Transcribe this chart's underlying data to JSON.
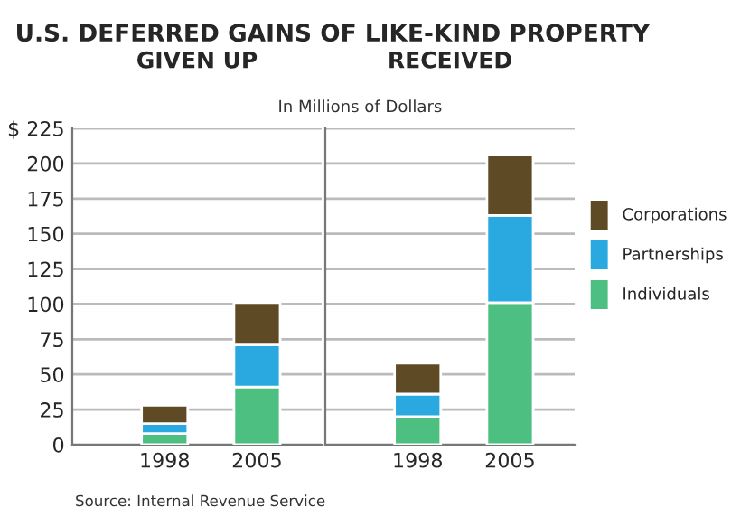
{
  "chart_data": [
    {
      "type": "bar",
      "stacked": true,
      "title": "U.S. DEFERRED GAINS OF LIKE-KIND PROPERTY",
      "subtitle": "GIVEN UP",
      "annotations": [
        "In Millions of Dollars",
        "Source: Internal Revenue Service"
      ],
      "categories": [
        "1998",
        "2005"
      ],
      "series": [
        {
          "color": "#4dbf80",
          "values": [
            8,
            41
          ]
        },
        {
          "color": "#2aa8e0",
          "values": [
            7,
            30
          ]
        },
        {
          "color": "#5e4a25",
          "values": [
            13,
            30
          ]
        }
      ],
      "ylim": [
        0,
        225
      ],
      "yticks": [
        0,
        25,
        50,
        75,
        100,
        125,
        150,
        175,
        200,
        {
          "value": 225,
          "label": "$ 225"
        }
      ],
      "grid": "y"
    },
    {
      "type": "bar",
      "stacked": true,
      "title": "RECEIVED",
      "categories": [
        "1998",
        "2005"
      ],
      "series": [
        {
          "name": "Individuals",
          "color": "#4dbf80",
          "values": [
            20,
            101
          ]
        },
        {
          "name": "Partnerships",
          "color": "#2aa8e0",
          "values": [
            16,
            62
          ]
        },
        {
          "name": "Corporations",
          "color": "#5e4a25",
          "values": [
            22,
            43
          ]
        }
      ],
      "ylim": [
        0,
        225
      ],
      "yticks": [
        0,
        25,
        50,
        75,
        100,
        125,
        150,
        175,
        200,
        225
      ],
      "grid": "y",
      "tick_labels": "x",
      "legend": "right"
    }
  ]
}
